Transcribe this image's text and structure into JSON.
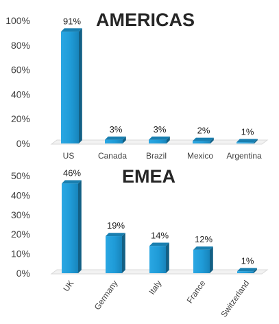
{
  "chart_data": [
    {
      "type": "bar",
      "title": "AMERICAS",
      "categories": [
        "US",
        "Canada",
        "Brazil",
        "Mexico",
        "Argentina"
      ],
      "values": [
        91,
        3,
        3,
        2,
        1
      ],
      "value_labels": [
        "91%",
        "3%",
        "3%",
        "2%",
        "1%"
      ],
      "yticks": [
        "0%",
        "20%",
        "40%",
        "60%",
        "80%",
        "100%"
      ],
      "ylim": [
        0,
        100
      ],
      "grid": false,
      "legend": "none",
      "bar_color": "#1f9bd7",
      "xlabel": "",
      "ylabel": ""
    },
    {
      "type": "bar",
      "title": "EMEA",
      "categories": [
        "UK",
        "Germany",
        "Italy",
        "France",
        "Switzerland"
      ],
      "values": [
        46,
        19,
        14,
        12,
        1
      ],
      "value_labels": [
        "46%",
        "19%",
        "14%",
        "12%",
        "1%"
      ],
      "yticks": [
        "0%",
        "10%",
        "20%",
        "30%",
        "40%",
        "50%"
      ],
      "ylim": [
        0,
        50
      ],
      "grid": false,
      "legend": "none",
      "bar_color": "#1f9bd7",
      "xlabel": "",
      "ylabel": ""
    }
  ]
}
